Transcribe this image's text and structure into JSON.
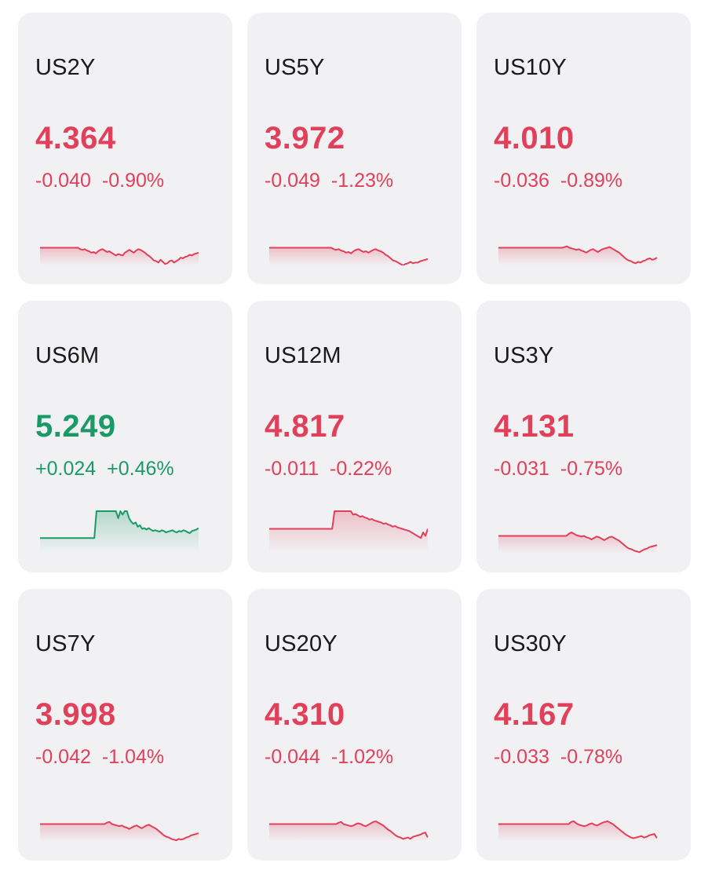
{
  "colors": {
    "down": "#e0405a",
    "up": "#1a9a66",
    "card_bg": "#f1f1f3"
  },
  "cards": [
    {
      "symbol": "US2Y",
      "price": "4.364",
      "change": "-0.040",
      "change_pct": "-0.90%",
      "direction": "down",
      "spark": [
        55,
        55,
        55,
        55,
        55,
        55,
        55,
        55,
        55,
        55,
        55,
        55,
        55,
        55,
        55,
        55,
        55,
        55,
        57,
        58,
        57,
        59,
        60,
        62,
        61,
        63,
        60,
        58,
        57,
        59,
        61,
        60,
        62,
        64,
        66,
        64,
        65,
        66,
        62,
        60,
        58,
        60,
        62,
        59,
        57,
        58,
        60,
        62,
        65,
        67,
        70,
        73,
        74,
        76,
        72,
        75,
        78,
        77,
        74,
        73,
        76,
        74,
        72,
        69,
        70,
        68,
        67,
        65,
        66,
        64,
        63,
        62
      ]
    },
    {
      "symbol": "US5Y",
      "price": "3.972",
      "change": "-0.049",
      "change_pct": "-1.23%",
      "direction": "down",
      "spark": [
        55,
        55,
        55,
        55,
        55,
        55,
        55,
        55,
        55,
        55,
        55,
        55,
        55,
        55,
        55,
        55,
        55,
        55,
        55,
        55,
        55,
        55,
        55,
        55,
        55,
        55,
        57,
        58,
        57,
        59,
        60,
        62,
        61,
        63,
        60,
        58,
        57,
        59,
        61,
        60,
        62,
        60,
        58,
        57,
        59,
        60,
        62,
        65,
        67,
        70,
        73,
        74,
        76,
        78,
        80,
        78,
        77,
        75,
        77,
        76,
        76,
        74,
        73,
        72,
        71
      ]
    },
    {
      "symbol": "US10Y",
      "price": "4.010",
      "change": "-0.036",
      "change_pct": "-0.89%",
      "direction": "down",
      "spark": [
        55,
        55,
        55,
        55,
        55,
        55,
        55,
        55,
        55,
        55,
        55,
        55,
        55,
        55,
        55,
        55,
        55,
        55,
        55,
        55,
        55,
        55,
        55,
        55,
        55,
        55,
        55,
        55,
        54,
        53,
        55,
        56,
        57,
        58,
        57,
        59,
        60,
        62,
        60,
        58,
        57,
        59,
        61,
        59,
        57,
        56,
        55,
        54,
        56,
        58,
        60,
        62,
        65,
        68,
        71,
        73,
        74,
        76,
        77,
        75,
        76,
        74,
        73,
        71,
        70,
        72,
        71,
        69
      ]
    },
    {
      "symbol": "US6M",
      "price": "5.249",
      "change": "+0.024",
      "change_pct": "+0.46%",
      "direction": "up",
      "spark": [
        58,
        58,
        58,
        58,
        58,
        58,
        58,
        58,
        58,
        58,
        58,
        58,
        58,
        58,
        58,
        58,
        58,
        58,
        58,
        58,
        58,
        58,
        58,
        58,
        58,
        58,
        20,
        20,
        20,
        20,
        20,
        20,
        20,
        20,
        20,
        20,
        30,
        20,
        25,
        20,
        20,
        30,
        35,
        38,
        36,
        42,
        40,
        45,
        44,
        46,
        44,
        46,
        48,
        47,
        48,
        49,
        47,
        48,
        50,
        49,
        48,
        47,
        49,
        50,
        48,
        49,
        47,
        48,
        50,
        51,
        48,
        47,
        46,
        44
      ]
    },
    {
      "symbol": "US12M",
      "price": "4.817",
      "change": "-0.011",
      "change_pct": "-0.22%",
      "direction": "down",
      "spark": [
        45,
        45,
        45,
        45,
        45,
        45,
        45,
        45,
        45,
        45,
        45,
        45,
        45,
        45,
        45,
        45,
        45,
        45,
        45,
        45,
        45,
        45,
        45,
        45,
        45,
        45,
        45,
        45,
        20,
        20,
        20,
        20,
        20,
        20,
        20,
        20,
        25,
        24,
        26,
        28,
        27,
        29,
        30,
        32,
        31,
        33,
        34,
        35,
        36,
        38,
        37,
        39,
        40,
        42,
        41,
        43,
        44,
        45,
        46,
        47,
        48,
        50,
        52,
        54,
        56,
        58,
        50,
        55,
        45
      ]
    },
    {
      "symbol": "US3Y",
      "price": "4.131",
      "change": "-0.031",
      "change_pct": "-0.75%",
      "direction": "down",
      "spark": [
        55,
        55,
        55,
        55,
        55,
        55,
        55,
        55,
        55,
        55,
        55,
        55,
        55,
        55,
        55,
        55,
        55,
        55,
        55,
        55,
        55,
        55,
        55,
        55,
        55,
        55,
        55,
        55,
        52,
        50,
        52,
        54,
        55,
        56,
        55,
        57,
        58,
        60,
        58,
        56,
        57,
        59,
        61,
        59,
        57,
        56,
        58,
        60,
        62,
        65,
        68,
        71,
        73,
        74,
        76,
        77,
        78,
        76,
        74,
        73,
        71,
        70,
        69,
        68
      ]
    },
    {
      "symbol": "US7Y",
      "price": "3.998",
      "change": "-0.042",
      "change_pct": "-1.04%",
      "direction": "down",
      "spark": [
        55,
        55,
        55,
        55,
        55,
        55,
        55,
        55,
        55,
        55,
        55,
        55,
        55,
        55,
        55,
        55,
        55,
        55,
        55,
        55,
        55,
        55,
        55,
        55,
        55,
        55,
        55,
        53,
        52,
        55,
        56,
        57,
        58,
        57,
        59,
        60,
        62,
        60,
        58,
        57,
        59,
        61,
        59,
        57,
        56,
        58,
        60,
        62,
        65,
        68,
        71,
        73,
        74,
        76,
        77,
        78,
        76,
        77,
        76,
        74,
        73,
        71,
        70,
        69,
        68
      ]
    },
    {
      "symbol": "US20Y",
      "price": "4.310",
      "change": "-0.044",
      "change_pct": "-1.02%",
      "direction": "down",
      "spark": [
        55,
        55,
        55,
        55,
        55,
        55,
        55,
        55,
        55,
        55,
        55,
        55,
        55,
        55,
        55,
        55,
        55,
        55,
        55,
        55,
        55,
        55,
        55,
        55,
        55,
        55,
        55,
        55,
        53,
        52,
        55,
        56,
        57,
        58,
        57,
        55,
        54,
        55,
        57,
        58,
        56,
        54,
        52,
        51,
        53,
        55,
        57,
        60,
        63,
        65,
        68,
        71,
        73,
        74,
        76,
        75,
        74,
        76,
        73,
        72,
        71,
        70,
        68,
        67,
        74
      ]
    },
    {
      "symbol": "US30Y",
      "price": "4.167",
      "change": "-0.033",
      "change_pct": "-0.78%",
      "direction": "down",
      "spark": [
        55,
        55,
        55,
        55,
        55,
        55,
        55,
        55,
        55,
        55,
        55,
        55,
        55,
        55,
        55,
        55,
        55,
        55,
        55,
        55,
        55,
        55,
        55,
        55,
        55,
        55,
        55,
        55,
        52,
        51,
        54,
        56,
        57,
        58,
        57,
        55,
        54,
        56,
        57,
        55,
        53,
        52,
        51,
        53,
        55,
        58,
        61,
        64,
        67,
        70,
        72,
        74,
        75,
        74,
        73,
        72,
        74,
        73,
        71,
        70,
        69,
        75
      ]
    }
  ]
}
